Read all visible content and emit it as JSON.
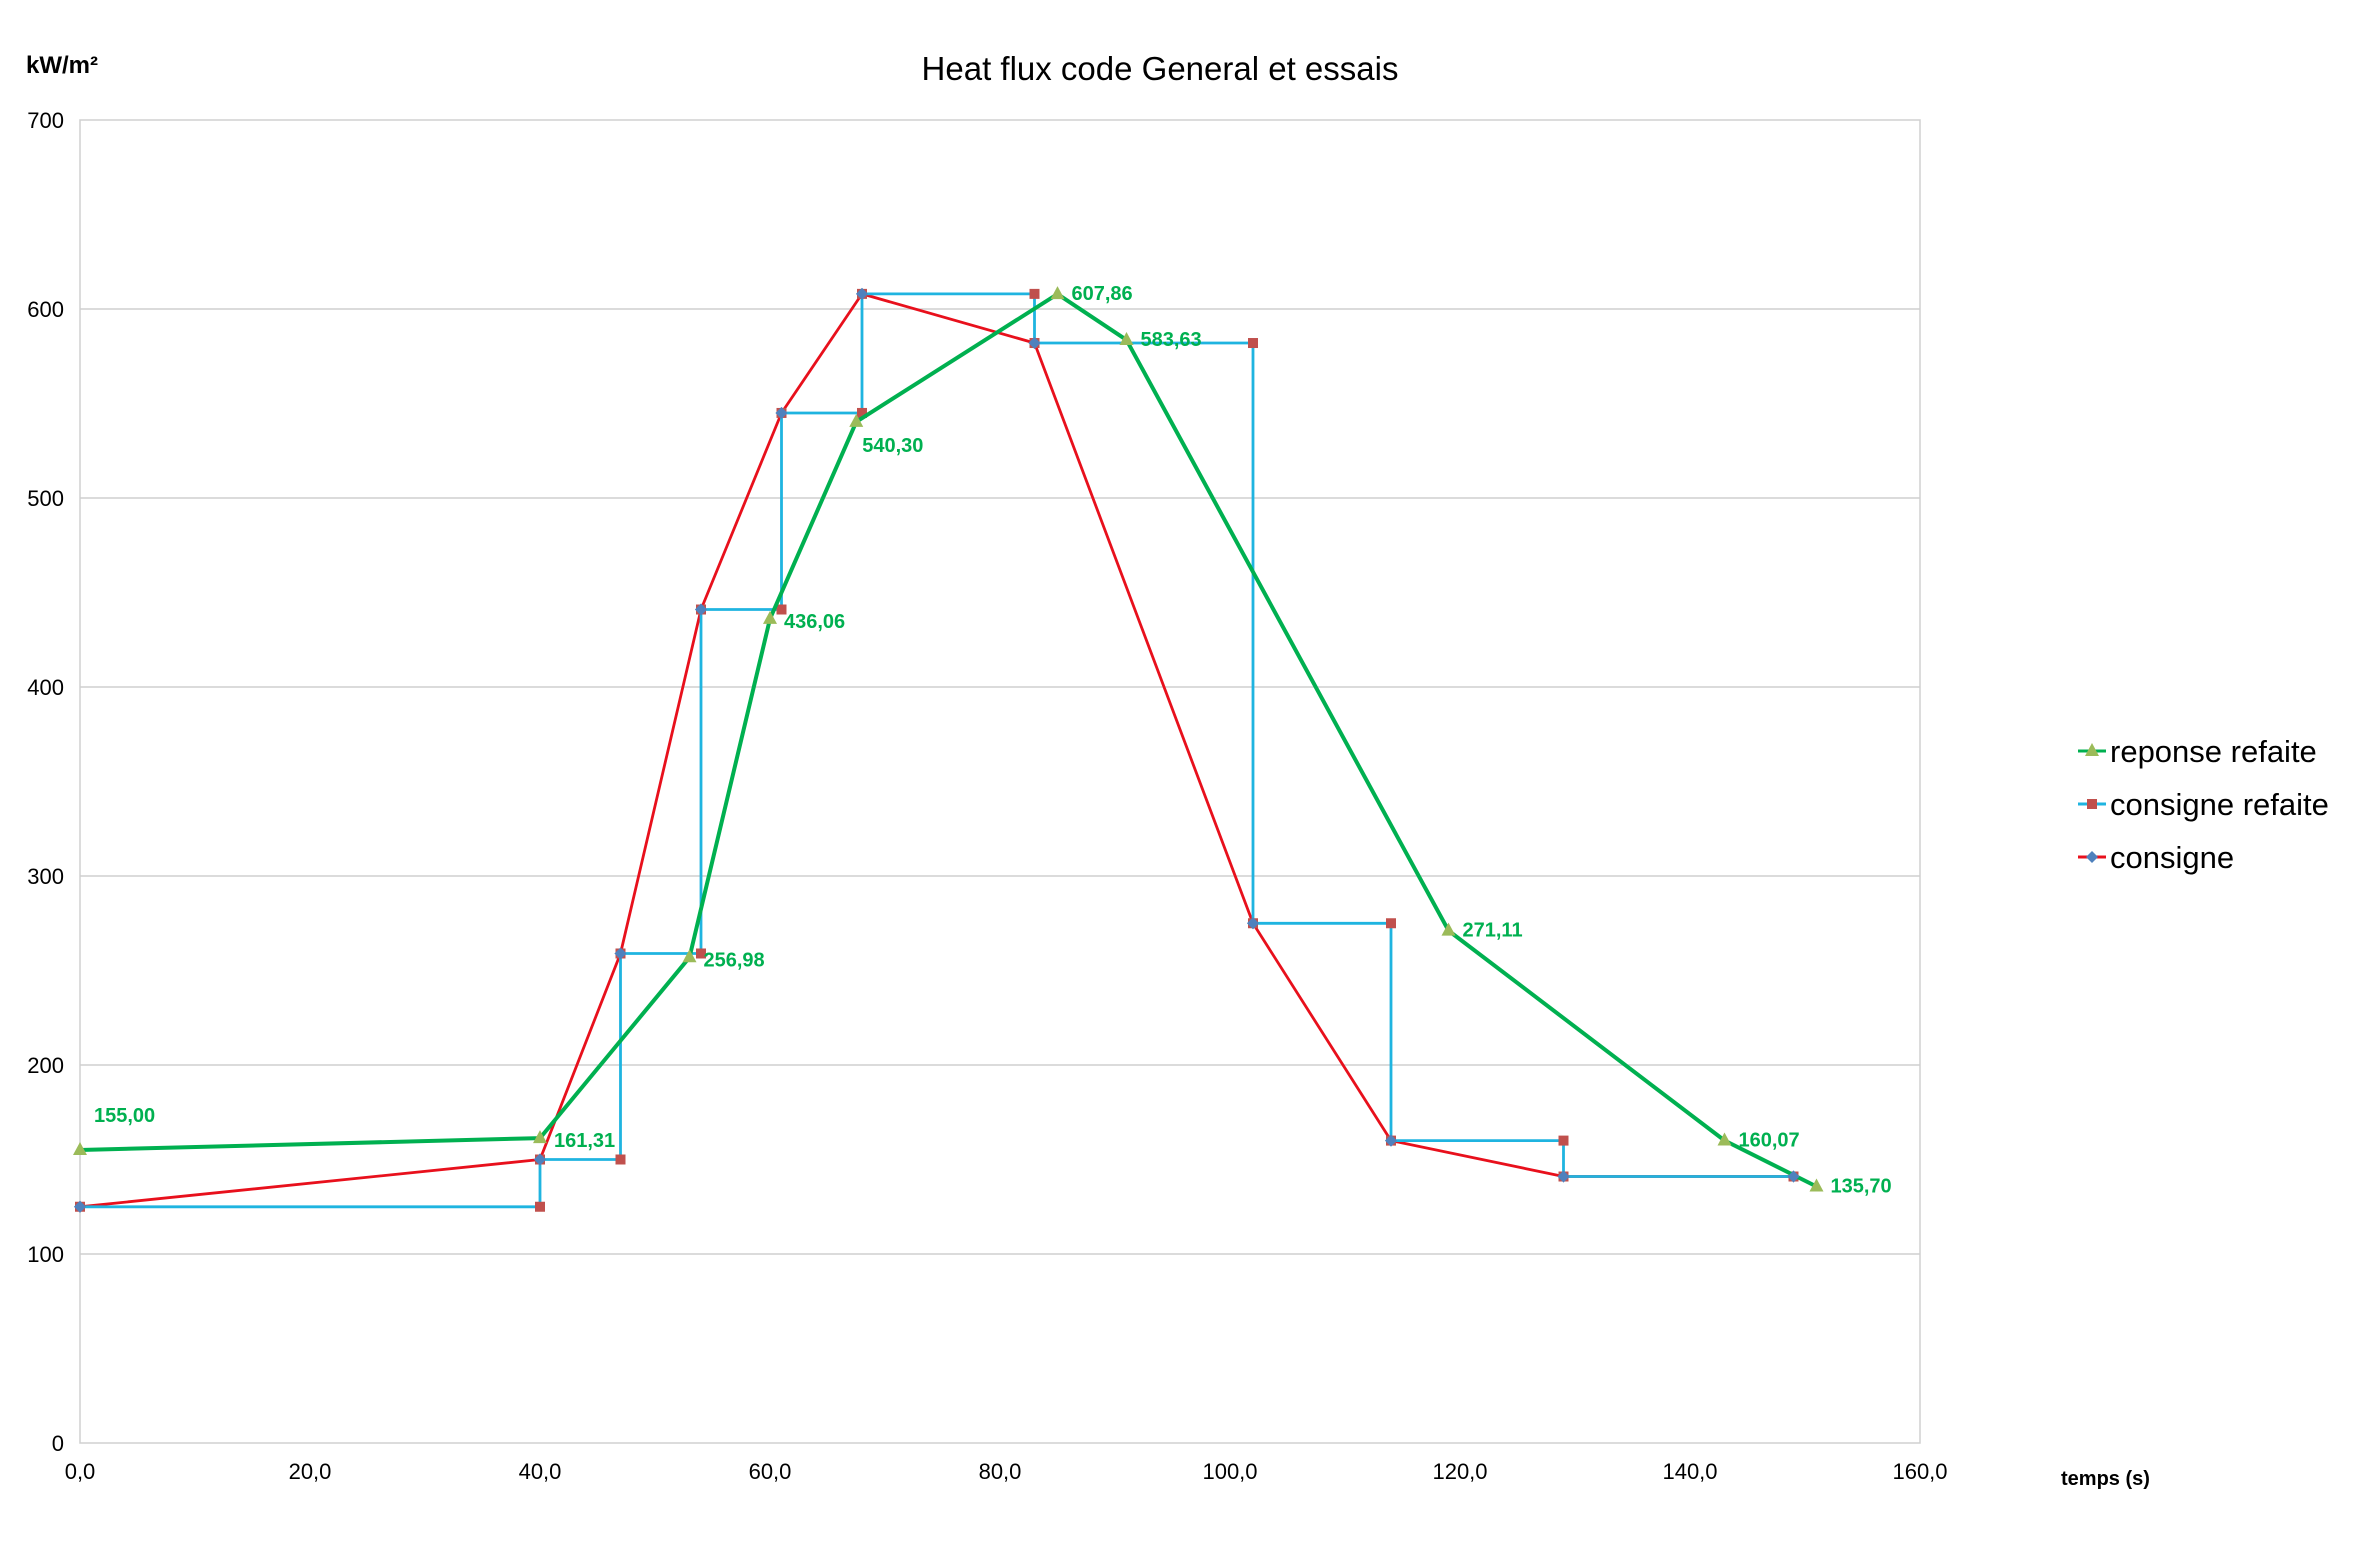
{
  "chart_data": {
    "type": "line",
    "title": "Heat flux code General et essais",
    "ylabel": "kW/m²",
    "xlabel": "temps (s)",
    "xlim": [
      0,
      160
    ],
    "ylim": [
      0,
      700
    ],
    "x_ticks": [
      "0,0",
      "20,0",
      "40,0",
      "60,0",
      "80,0",
      "100,0",
      "120,0",
      "140,0",
      "160,0"
    ],
    "y_ticks": [
      "0",
      "100",
      "200",
      "300",
      "400",
      "500",
      "600",
      "700"
    ],
    "grid": "horizontal",
    "legend_position": "right",
    "series": [
      {
        "name": "reponse refaite",
        "color": "#00b050",
        "marker": "triangle",
        "marker_color": "#9bbb59",
        "points": [
          [
            0,
            155.0
          ],
          [
            40,
            161.31
          ],
          [
            53,
            256.98
          ],
          [
            60,
            436.06
          ],
          [
            67.5,
            540.3
          ],
          [
            85,
            607.86
          ],
          [
            91,
            583.63
          ],
          [
            119,
            271.11
          ],
          [
            143,
            160.07
          ],
          [
            151,
            135.7
          ]
        ],
        "labels": [
          "155,00",
          "161,31",
          "256,98",
          "436,06",
          "540,30",
          "607,86",
          "583,63",
          "271,11",
          "160,07",
          "135,70"
        ]
      },
      {
        "name": "consigne refaite",
        "color": "#1fb4e0",
        "marker": "square",
        "marker_color": "#c0504d",
        "points": [
          [
            0,
            125
          ],
          [
            40,
            125
          ],
          [
            40,
            150
          ],
          [
            47,
            150
          ],
          [
            47,
            259
          ],
          [
            54,
            259
          ],
          [
            54,
            441
          ],
          [
            61,
            441
          ],
          [
            61,
            545
          ],
          [
            68,
            545
          ],
          [
            68,
            608
          ],
          [
            83,
            608
          ],
          [
            83,
            582
          ],
          [
            102,
            582
          ],
          [
            102,
            275
          ],
          [
            114,
            275
          ],
          [
            114,
            160
          ],
          [
            129,
            160
          ],
          [
            129,
            141
          ],
          [
            149,
            141
          ]
        ]
      },
      {
        "name": "consigne",
        "color": "#e8101c",
        "marker": "diamond",
        "marker_color": "#4f81bd",
        "points": [
          [
            0,
            125
          ],
          [
            40,
            150
          ],
          [
            47,
            259
          ],
          [
            54,
            441
          ],
          [
            61,
            545
          ],
          [
            68,
            608
          ],
          [
            83,
            582
          ],
          [
            102,
            275
          ],
          [
            114,
            160
          ],
          [
            129,
            141
          ],
          [
            149,
            141
          ]
        ]
      }
    ]
  }
}
